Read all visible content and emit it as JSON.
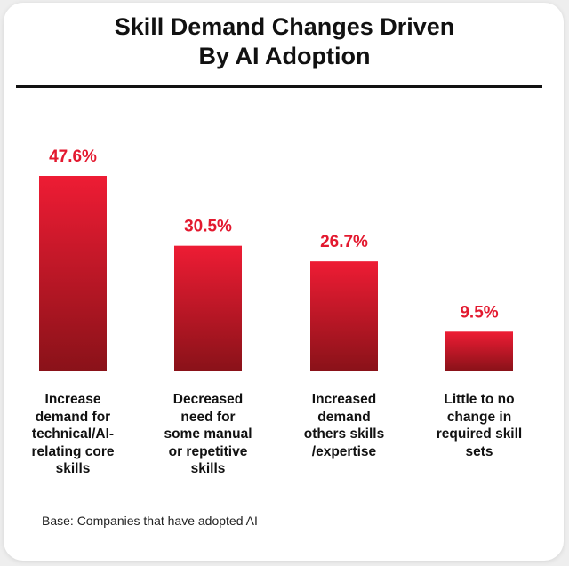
{
  "title_lines": [
    "Skill Demand Changes Driven",
    "By AI Adoption"
  ],
  "footnote": "Base: Companies that have adopted AI",
  "colors": {
    "bar_top": "#ee1c34",
    "bar_bottom": "#8a1219",
    "value_text": "#e3192f"
  },
  "chart_data": {
    "type": "bar",
    "title": "Skill Demand Changes Driven By AI Adoption",
    "categories": [
      "Increase demand for technical/AI-relating core skills",
      "Decreased need for some manual or repetitive skills",
      "Increased demand others skills /expertise",
      "Little to no change in required skill sets"
    ],
    "category_label_lines": [
      [
        "Increase",
        "demand for",
        "technical/AI-",
        "relating core",
        "skills"
      ],
      [
        "Decreased",
        "need for",
        "some manual",
        "or repetitive",
        "skills"
      ],
      [
        "Increased",
        "demand",
        "others skills",
        "/expertise"
      ],
      [
        "Little to no",
        "change in",
        "required skill",
        "sets"
      ]
    ],
    "values": [
      47.6,
      30.5,
      26.7,
      9.5
    ],
    "value_labels": [
      "47.6%",
      "30.5%",
      "26.7%",
      "9.5%"
    ],
    "ylim": [
      0,
      47.6
    ],
    "xlabel": "",
    "ylabel": "",
    "grid": false,
    "legend": "none"
  }
}
